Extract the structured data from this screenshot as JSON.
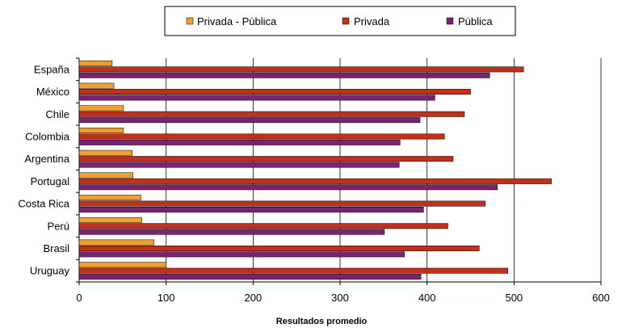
{
  "chart_data": {
    "type": "bar",
    "orientation": "horizontal",
    "categories": [
      "España",
      "México",
      "Chile",
      "Colombia",
      "Argentina",
      "Portugal",
      "Costa Rica",
      "Perú",
      "Brasil",
      "Uruguay"
    ],
    "series": [
      {
        "name": "Privada - Pública",
        "color": "#f0a030",
        "values": [
          38,
          40,
          51,
          51,
          61,
          62,
          71,
          72,
          86,
          100
        ]
      },
      {
        "name": "Privada",
        "color": "#c0301a",
        "values": [
          511,
          450,
          443,
          420,
          430,
          543,
          467,
          424,
          460,
          493
        ]
      },
      {
        "name": "Pública",
        "color": "#7a2470",
        "values": [
          472,
          409,
          392,
          369,
          368,
          481,
          396,
          351,
          374,
          393
        ]
      }
    ],
    "xlabel": "Resultados promedio",
    "xlim": [
      0,
      600
    ],
    "xticks": [
      0,
      100,
      200,
      300,
      400,
      500,
      600
    ],
    "grid": "vertical",
    "legend_position": "top"
  }
}
